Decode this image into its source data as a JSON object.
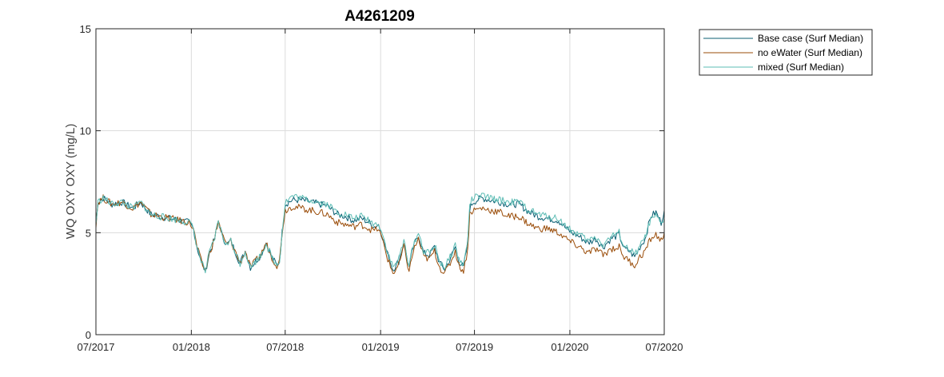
{
  "chart_data": {
    "type": "line",
    "title": "A4261209",
    "xlabel": "",
    "ylabel": "WQ OXY OXY (mg/L)",
    "xlim": [
      "2017-07-01",
      "2020-07-01"
    ],
    "ylim": [
      0,
      15
    ],
    "x_ticks": [
      "07/2017",
      "01/2018",
      "07/2018",
      "01/2019",
      "07/2019",
      "01/2020",
      "07/2020"
    ],
    "y_ticks": [
      0,
      5,
      10,
      15
    ],
    "grid": true,
    "legend_position": "outside-top-right",
    "series": [
      {
        "name": "Base case (Surf Median)",
        "color": "#0b5f73",
        "x": [
          "2017-07-01",
          "2017-07-05",
          "2017-07-15",
          "2017-08-01",
          "2017-08-20",
          "2017-09-10",
          "2017-09-25",
          "2017-10-15",
          "2017-11-01",
          "2017-11-20",
          "2017-12-10",
          "2017-12-28",
          "2018-01-05",
          "2018-01-12",
          "2018-01-20",
          "2018-01-28",
          "2018-02-05",
          "2018-02-15",
          "2018-02-22",
          "2018-03-01",
          "2018-03-10",
          "2018-03-18",
          "2018-03-28",
          "2018-04-05",
          "2018-04-15",
          "2018-04-25",
          "2018-05-05",
          "2018-05-15",
          "2018-05-25",
          "2018-06-05",
          "2018-06-15",
          "2018-06-20",
          "2018-06-25",
          "2018-07-01",
          "2018-07-15",
          "2018-08-01",
          "2018-08-20",
          "2018-09-05",
          "2018-09-20",
          "2018-10-10",
          "2018-10-25",
          "2018-11-10",
          "2018-11-25",
          "2018-12-10",
          "2018-12-20",
          "2018-12-28",
          "2019-01-05",
          "2019-01-15",
          "2019-01-25",
          "2019-02-05",
          "2019-02-15",
          "2019-02-25",
          "2019-03-05",
          "2019-03-15",
          "2019-03-25",
          "2019-04-05",
          "2019-04-15",
          "2019-04-25",
          "2019-05-05",
          "2019-05-15",
          "2019-05-25",
          "2019-06-01",
          "2019-06-10",
          "2019-06-18",
          "2019-06-22",
          "2019-06-28",
          "2019-07-15",
          "2019-08-01",
          "2019-08-20",
          "2019-09-05",
          "2019-09-25",
          "2019-10-15",
          "2019-11-01",
          "2019-11-20",
          "2019-12-10",
          "2019-12-25",
          "2020-01-05",
          "2020-01-20",
          "2020-02-05",
          "2020-02-20",
          "2020-03-05",
          "2020-03-20",
          "2020-04-05",
          "2020-04-15",
          "2020-04-25",
          "2020-05-05",
          "2020-05-15",
          "2020-05-25",
          "2020-06-05",
          "2020-06-15",
          "2020-06-25",
          "2020-07-01"
        ],
        "y": [
          5.4,
          6.5,
          6.7,
          6.4,
          6.5,
          6.2,
          6.5,
          5.9,
          5.8,
          5.7,
          5.6,
          5.5,
          5.2,
          4.3,
          3.6,
          3.1,
          4.0,
          4.7,
          5.6,
          4.9,
          4.4,
          4.6,
          4.0,
          3.5,
          4.1,
          3.3,
          3.6,
          3.9,
          4.5,
          3.8,
          3.4,
          3.6,
          5.0,
          6.4,
          6.6,
          6.6,
          6.5,
          6.4,
          6.3,
          5.9,
          5.8,
          5.6,
          5.7,
          5.5,
          5.3,
          5.4,
          4.8,
          3.9,
          3.2,
          3.6,
          4.5,
          3.3,
          4.3,
          4.9,
          4.0,
          3.9,
          4.3,
          3.5,
          3.2,
          3.7,
          4.3,
          3.6,
          3.3,
          4.5,
          6.2,
          6.5,
          6.7,
          6.6,
          6.5,
          6.4,
          6.4,
          6.0,
          5.8,
          5.7,
          5.6,
          5.2,
          5.0,
          4.8,
          4.5,
          4.7,
          4.3,
          4.7,
          4.9,
          4.2,
          4.1,
          3.8,
          4.3,
          4.7,
          5.8,
          6.0,
          5.5,
          6.1
        ]
      },
      {
        "name": "no eWater (Surf Median)",
        "color": "#9a4c08",
        "x": [
          "2017-07-01",
          "2017-07-05",
          "2017-07-15",
          "2017-08-01",
          "2017-08-20",
          "2017-09-10",
          "2017-09-25",
          "2017-10-15",
          "2017-11-01",
          "2017-11-20",
          "2017-12-10",
          "2017-12-28",
          "2018-01-05",
          "2018-01-12",
          "2018-01-20",
          "2018-01-28",
          "2018-02-05",
          "2018-02-15",
          "2018-02-22",
          "2018-03-01",
          "2018-03-10",
          "2018-03-18",
          "2018-03-28",
          "2018-04-05",
          "2018-04-15",
          "2018-04-25",
          "2018-05-05",
          "2018-05-15",
          "2018-05-25",
          "2018-06-05",
          "2018-06-15",
          "2018-06-20",
          "2018-06-25",
          "2018-07-01",
          "2018-07-15",
          "2018-08-01",
          "2018-08-20",
          "2018-09-05",
          "2018-09-20",
          "2018-10-10",
          "2018-10-25",
          "2018-11-10",
          "2018-11-25",
          "2018-12-10",
          "2018-12-20",
          "2018-12-28",
          "2019-01-05",
          "2019-01-15",
          "2019-01-25",
          "2019-02-05",
          "2019-02-15",
          "2019-02-25",
          "2019-03-05",
          "2019-03-15",
          "2019-03-25",
          "2019-04-05",
          "2019-04-15",
          "2019-04-25",
          "2019-05-05",
          "2019-05-15",
          "2019-05-25",
          "2019-06-01",
          "2019-06-10",
          "2019-06-18",
          "2019-06-22",
          "2019-06-28",
          "2019-07-15",
          "2019-08-01",
          "2019-08-20",
          "2019-09-05",
          "2019-09-25",
          "2019-10-15",
          "2019-11-01",
          "2019-11-20",
          "2019-12-10",
          "2019-12-25",
          "2020-01-05",
          "2020-01-20",
          "2020-02-05",
          "2020-02-20",
          "2020-03-05",
          "2020-03-20",
          "2020-04-05",
          "2020-04-15",
          "2020-04-25",
          "2020-05-05",
          "2020-05-15",
          "2020-05-25",
          "2020-06-05",
          "2020-06-15",
          "2020-06-25",
          "2020-07-01"
        ],
        "y": [
          5.4,
          6.5,
          6.7,
          6.4,
          6.5,
          6.2,
          6.5,
          5.9,
          5.8,
          5.7,
          5.6,
          5.5,
          5.2,
          4.3,
          3.6,
          3.1,
          4.0,
          4.7,
          5.6,
          4.9,
          4.4,
          4.6,
          4.0,
          3.5,
          4.1,
          3.3,
          3.6,
          3.9,
          4.5,
          3.8,
          3.4,
          3.6,
          5.0,
          6.1,
          6.3,
          6.2,
          6.1,
          6.0,
          5.9,
          5.5,
          5.4,
          5.3,
          5.4,
          5.2,
          5.1,
          5.2,
          4.6,
          3.7,
          3.0,
          3.4,
          4.3,
          3.1,
          4.1,
          4.7,
          3.8,
          3.7,
          4.1,
          3.3,
          3.0,
          3.5,
          4.1,
          3.4,
          3.1,
          4.2,
          5.9,
          6.1,
          6.2,
          6.1,
          6.0,
          5.8,
          5.8,
          5.4,
          5.2,
          5.2,
          5.0,
          4.7,
          4.5,
          4.3,
          4.0,
          4.2,
          3.9,
          4.2,
          4.3,
          3.8,
          3.6,
          3.4,
          3.8,
          4.1,
          4.7,
          4.9,
          4.6,
          5.0
        ]
      },
      {
        "name": "mixed (Surf Median)",
        "color": "#5cbcb4",
        "x": [
          "2017-07-01",
          "2017-07-05",
          "2017-07-15",
          "2017-08-01",
          "2017-08-20",
          "2017-09-10",
          "2017-09-25",
          "2017-10-15",
          "2017-11-01",
          "2017-11-20",
          "2017-12-10",
          "2017-12-28",
          "2018-01-05",
          "2018-01-12",
          "2018-01-20",
          "2018-01-28",
          "2018-02-05",
          "2018-02-15",
          "2018-02-22",
          "2018-03-01",
          "2018-03-10",
          "2018-03-18",
          "2018-03-28",
          "2018-04-05",
          "2018-04-15",
          "2018-04-25",
          "2018-05-05",
          "2018-05-15",
          "2018-05-25",
          "2018-06-05",
          "2018-06-15",
          "2018-06-20",
          "2018-06-25",
          "2018-07-01",
          "2018-07-15",
          "2018-08-01",
          "2018-08-20",
          "2018-09-05",
          "2018-09-20",
          "2018-10-10",
          "2018-10-25",
          "2018-11-10",
          "2018-11-25",
          "2018-12-10",
          "2018-12-20",
          "2018-12-28",
          "2019-01-05",
          "2019-01-15",
          "2019-01-25",
          "2019-02-05",
          "2019-02-15",
          "2019-02-25",
          "2019-03-05",
          "2019-03-15",
          "2019-03-25",
          "2019-04-05",
          "2019-04-15",
          "2019-04-25",
          "2019-05-05",
          "2019-05-15",
          "2019-05-25",
          "2019-06-01",
          "2019-06-10",
          "2019-06-18",
          "2019-06-22",
          "2019-06-28",
          "2019-07-15",
          "2019-08-01",
          "2019-08-20",
          "2019-09-05",
          "2019-09-25",
          "2019-10-15",
          "2019-11-01",
          "2019-11-20",
          "2019-12-10",
          "2019-12-25",
          "2020-01-05",
          "2020-01-20",
          "2020-02-05",
          "2020-02-20",
          "2020-03-05",
          "2020-03-20",
          "2020-04-05",
          "2020-04-15",
          "2020-04-25",
          "2020-05-05",
          "2020-05-15",
          "2020-05-25",
          "2020-06-05",
          "2020-06-15",
          "2020-06-25",
          "2020-07-01"
        ],
        "y": [
          5.4,
          6.5,
          6.7,
          6.4,
          6.5,
          6.2,
          6.5,
          5.9,
          5.8,
          5.7,
          5.6,
          5.5,
          5.2,
          4.3,
          3.6,
          3.1,
          4.0,
          4.7,
          5.6,
          4.9,
          4.4,
          4.6,
          4.0,
          3.5,
          4.1,
          3.3,
          3.6,
          3.9,
          4.5,
          3.8,
          3.4,
          3.6,
          5.0,
          6.5,
          6.8,
          6.7,
          6.6,
          6.5,
          6.4,
          6.0,
          5.9,
          5.7,
          5.8,
          5.6,
          5.4,
          5.5,
          4.9,
          4.0,
          3.3,
          3.7,
          4.6,
          3.4,
          4.4,
          5.0,
          4.1,
          4.0,
          4.4,
          3.6,
          3.3,
          3.8,
          4.4,
          3.7,
          3.4,
          4.6,
          6.4,
          6.7,
          6.8,
          6.7,
          6.6,
          6.5,
          6.5,
          6.1,
          5.9,
          5.8,
          5.7,
          5.3,
          5.1,
          4.9,
          4.6,
          4.8,
          4.4,
          4.8,
          5.0,
          4.3,
          4.2,
          3.9,
          4.3,
          4.8,
          5.6,
          5.8,
          5.4,
          5.7
        ]
      }
    ]
  }
}
